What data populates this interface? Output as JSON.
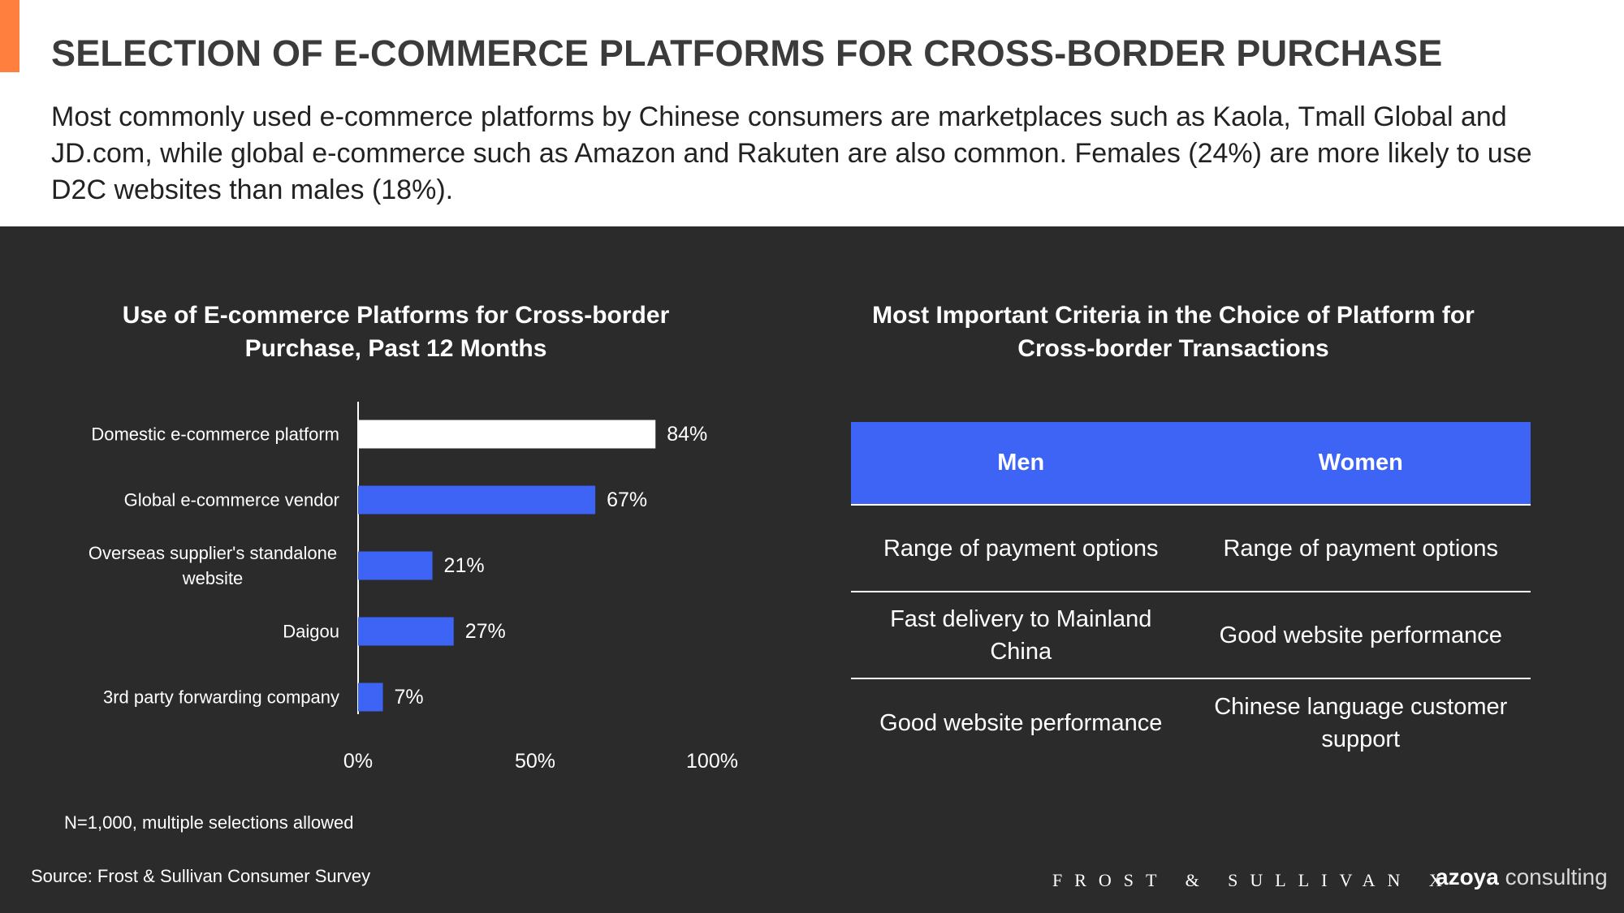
{
  "header": {
    "title": "SELECTION OF E-COMMERCE PLATFORMS FOR CROSS-BORDER PURCHASE",
    "intro": "Most commonly used e-commerce platforms by Chinese consumers are marketplaces such as Kaola, Tmall Global and JD.com, while global e-commerce such as Amazon and Rakuten are also common. Females (24%) are more likely to use D2C websites than males (18%).",
    "accent_color": "#ff7f3f"
  },
  "chart_data": {
    "type": "bar",
    "orientation": "horizontal",
    "title": "Use of E-commerce Platforms for Cross-border Purchase, Past 12 Months",
    "categories": [
      "Domestic e-commerce platform",
      "Global e-commerce vendor",
      "Overseas supplier's standalone website",
      "Daigou",
      "3rd party forwarding company"
    ],
    "values": [
      84,
      67,
      21,
      27,
      7
    ],
    "value_labels": [
      "84%",
      "67%",
      "21%",
      "27%",
      "7%"
    ],
    "bar_colors": [
      "#ffffff",
      "#3d64f5",
      "#3d64f5",
      "#3d64f5",
      "#3d64f5"
    ],
    "xlim": [
      0,
      100
    ],
    "xticks": [
      "0%",
      "50%",
      "100%"
    ],
    "grid": false,
    "note": "N=1,000, multiple selections allowed"
  },
  "criteria_table": {
    "title": "Most Important Criteria in the Choice of Platform for Cross-border Transactions",
    "header_color": "#3d64f5",
    "columns": [
      "Men",
      "Women"
    ],
    "rows": [
      [
        "Range of payment options",
        "Range of payment options"
      ],
      [
        "Fast delivery to Mainland China",
        "Good website performance"
      ],
      [
        "Good website performance",
        "Chinese language customer support"
      ]
    ]
  },
  "footer": {
    "source": "Source: Frost & Sullivan Consumer Survey",
    "logo_frost": "FROST & SULLIVAN X",
    "logo_azoya_brand": "azoya",
    "logo_azoya_suffix": " consulting"
  }
}
